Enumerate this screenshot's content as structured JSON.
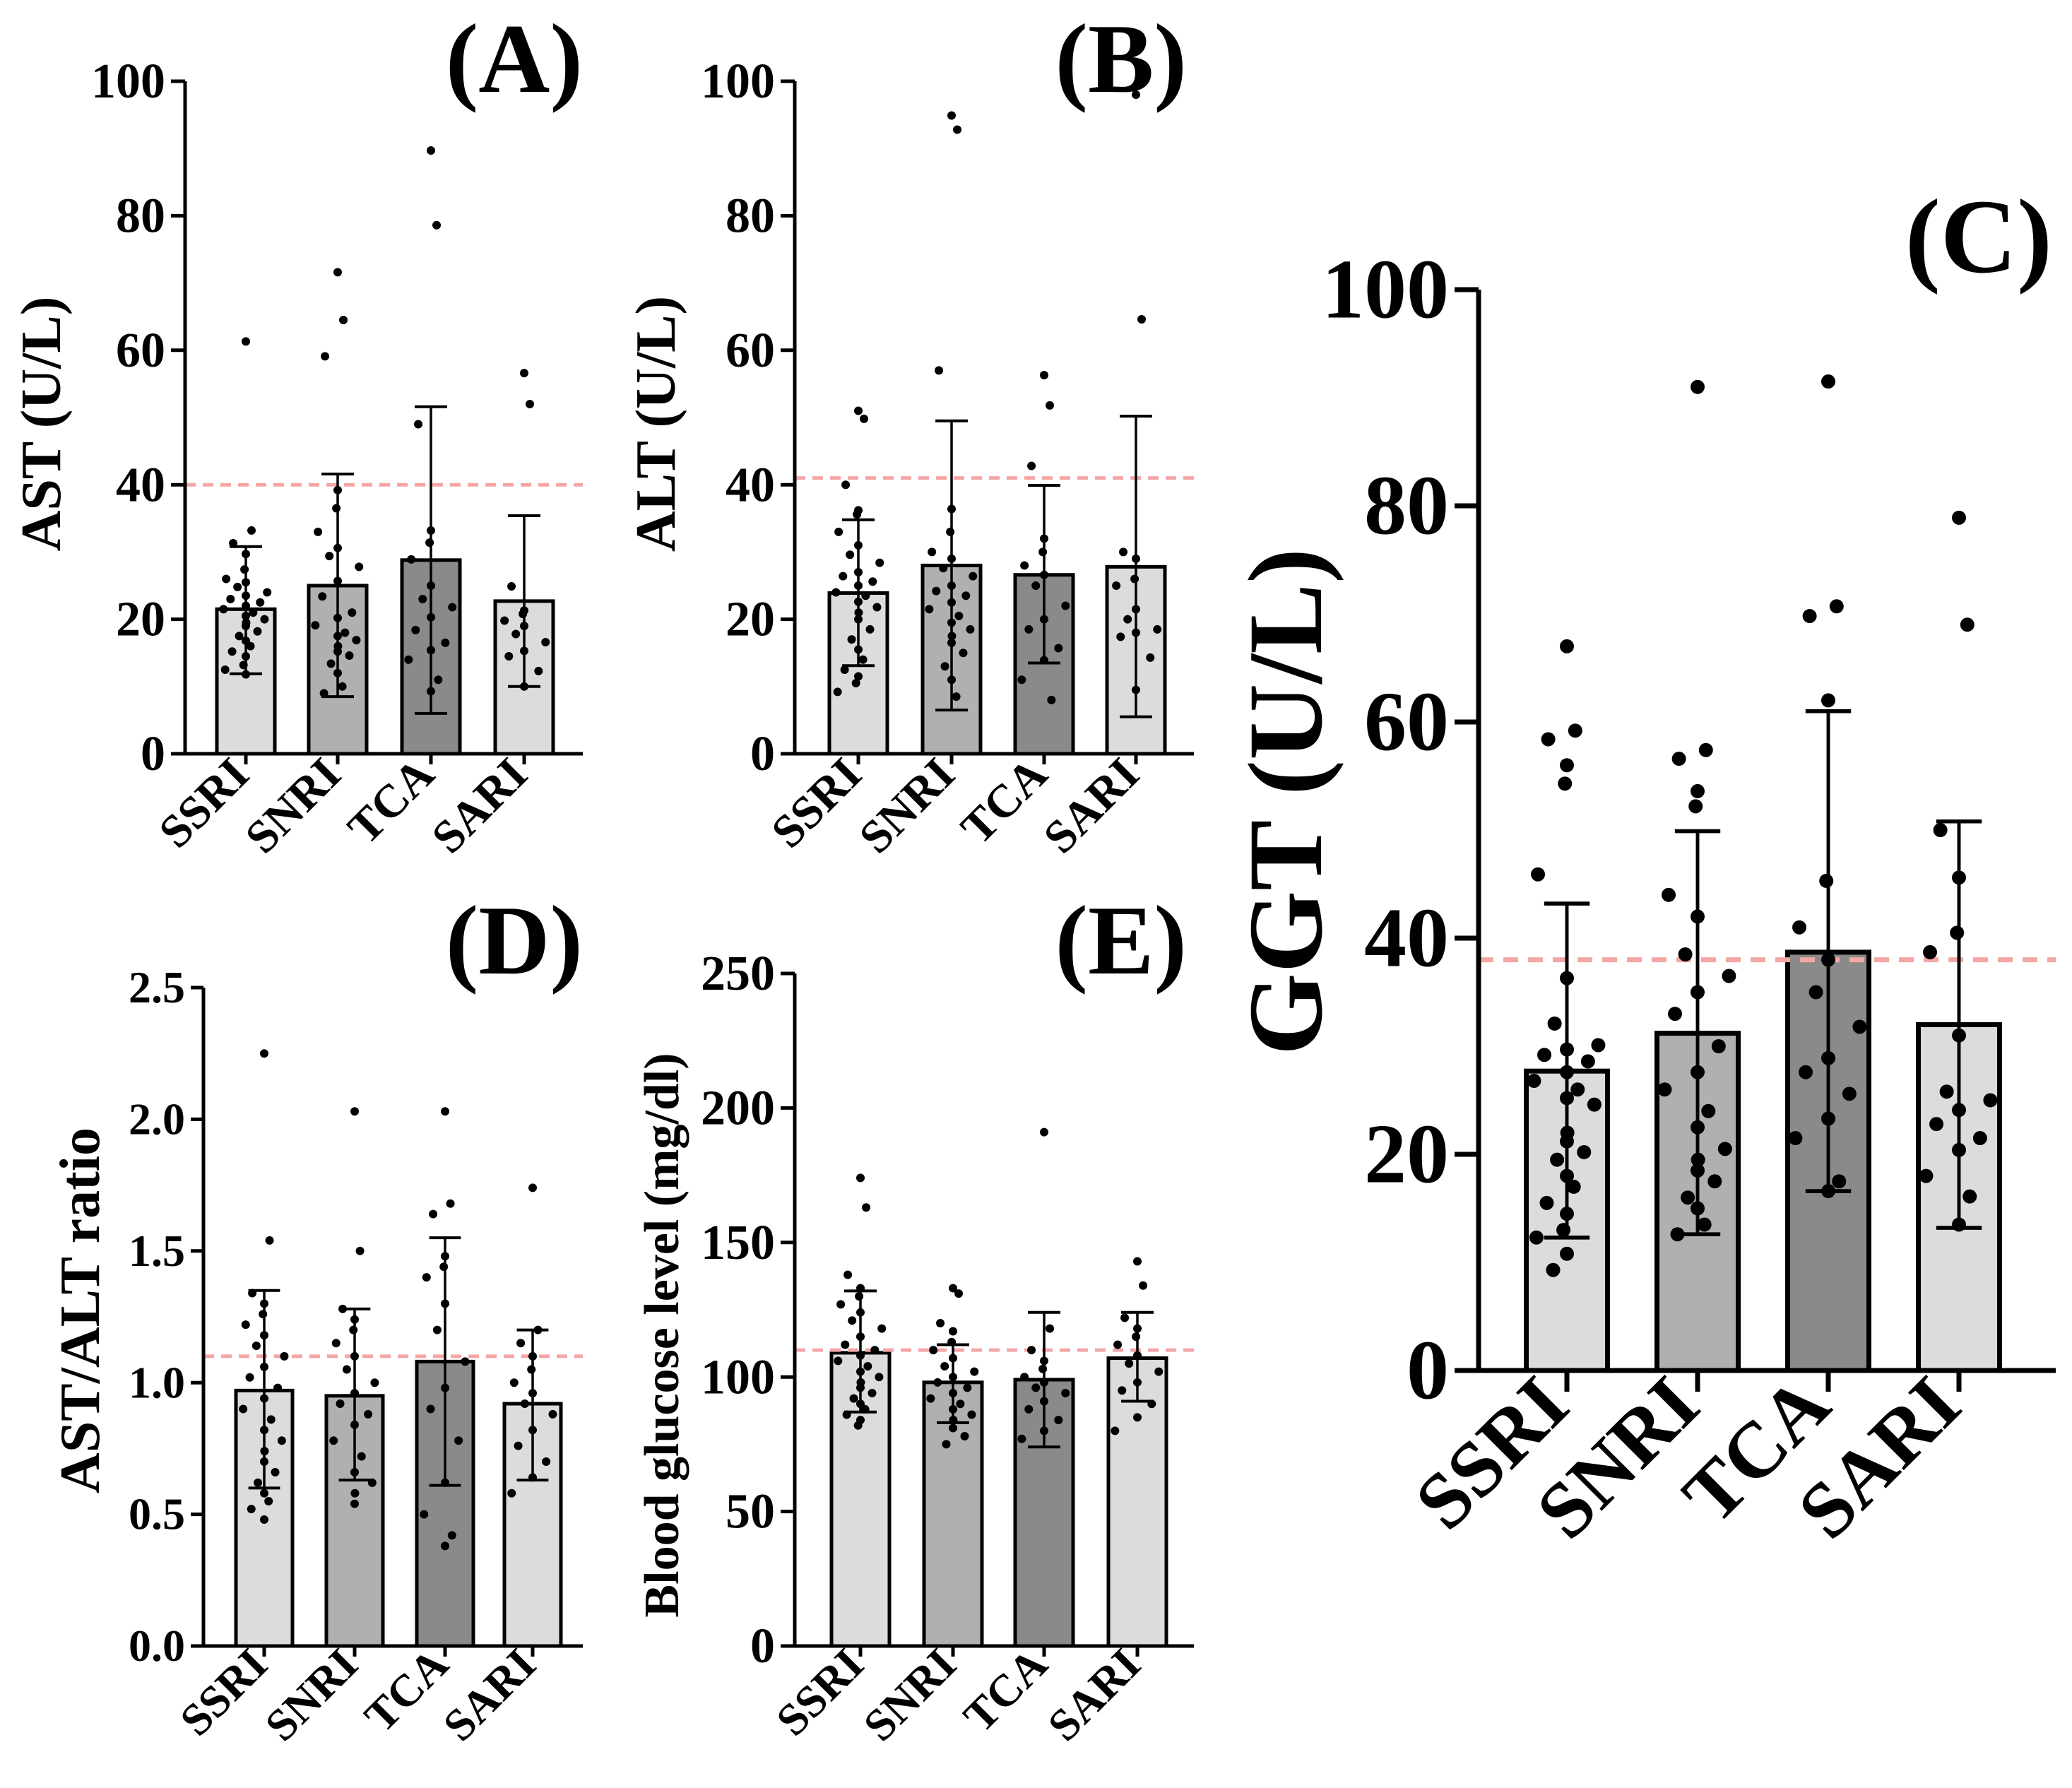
{
  "colors": {
    "reference_line": "#f4a6a6",
    "axis": "#000000",
    "points": "#000000"
  },
  "chart_data": [
    {
      "panel": "A",
      "panel_label": "(A)",
      "type": "bar",
      "ylabel": "AST (U/L)",
      "ylim": [
        0,
        100
      ],
      "yticks": [
        0,
        20,
        40,
        60,
        80,
        100
      ],
      "ytick_labels": [
        "0",
        "20",
        "40",
        "60",
        "80",
        "100"
      ],
      "reference_line": 40,
      "categories": [
        "SSRI",
        "SNRI",
        "TCA",
        "SARI"
      ],
      "bar_colors": [
        "#dcdcdc",
        "#b0b0b0",
        "#8a8a8a",
        "#dcdcdc"
      ],
      "values": [
        21.5,
        25,
        28.8,
        22.7
      ],
      "error_low": [
        11.9,
        8.5,
        6.0,
        10.0
      ],
      "error_high": [
        30.8,
        41.6,
        51.6,
        35.4
      ],
      "points": [
        [
          61.3,
          33.2,
          31.3,
          29.7,
          27.4,
          26.0,
          25.5,
          24.8,
          24.0,
          23.5,
          23.0,
          22.5,
          22.0,
          21.5,
          21.0,
          20.5,
          20.0,
          19.5,
          19.0,
          18.2,
          17.5,
          16.8,
          16.0,
          15.2,
          14.5,
          13.2,
          12.5,
          11.8
        ],
        [
          71.6,
          64.5,
          59.1,
          39.2,
          36.5,
          33.0,
          30.6,
          29.4,
          27.8,
          25.7,
          23.4,
          21.0,
          20.2,
          19.1,
          18.0,
          17.5,
          16.9,
          16.0,
          15.2,
          14.6,
          13.4,
          12.0,
          10.0,
          9.0
        ],
        [
          89.7,
          78.6,
          49.0,
          33.2,
          31.4,
          28.9,
          25.0,
          23.0,
          21.8,
          20.3,
          18.4,
          16.5,
          15.4,
          14.0,
          11.0,
          9.3
        ],
        [
          56.6,
          52.0,
          24.9,
          21.3,
          20.8,
          19.8,
          19.0,
          17.8,
          16.6,
          15.3,
          14.5,
          12.3,
          10.0
        ]
      ]
    },
    {
      "panel": "B",
      "panel_label": "(B)",
      "type": "bar",
      "ylabel": "ALT (U/L)",
      "ylim": [
        0,
        100
      ],
      "yticks": [
        0,
        20,
        40,
        60,
        80,
        100
      ],
      "ytick_labels": [
        "0",
        "20",
        "40",
        "60",
        "80",
        "100"
      ],
      "reference_line": 41,
      "categories": [
        "SSRI",
        "SNRI",
        "TCA",
        "SARI"
      ],
      "bar_colors": [
        "#dcdcdc",
        "#b0b0b0",
        "#8a8a8a",
        "#dcdcdc"
      ],
      "values": [
        23.9,
        28.0,
        26.6,
        27.8
      ],
      "error_low": [
        13.1,
        6.5,
        13.5,
        5.5
      ],
      "error_high": [
        34.8,
        49.5,
        39.9,
        50.2
      ],
      "points": [
        [
          51.0,
          49.8,
          40.0,
          36.2,
          35.6,
          33.0,
          31.0,
          29.6,
          28.4,
          27.0,
          26.4,
          25.6,
          25.0,
          24.0,
          23.5,
          22.6,
          21.8,
          21.0,
          20.0,
          18.5,
          17.0,
          15.5,
          14.0,
          12.5,
          11.5,
          10.5,
          9.2
        ],
        [
          94.9,
          92.8,
          57.0,
          36.4,
          33.0,
          30.0,
          29.0,
          27.6,
          26.4,
          25.0,
          24.2,
          23.5,
          22.5,
          21.5,
          20.5,
          19.5,
          18.5,
          17.5,
          16.5,
          15.0,
          13.0,
          11.0,
          8.5
        ],
        [
          56.3,
          51.8,
          42.8,
          32.0,
          30.0,
          28.0,
          26.6,
          25.0,
          22.0,
          20.0,
          18.5,
          15.7,
          13.9,
          11.0,
          8.0
        ],
        [
          98.0,
          64.6,
          30.0,
          29.0,
          26.0,
          25.0,
          21.5,
          20.0,
          18.5,
          18.0,
          17.4,
          14.3,
          9.5
        ]
      ]
    },
    {
      "panel": "C",
      "panel_label": "(C)",
      "type": "bar",
      "ylabel": "GGT (U/L)",
      "ylim": [
        0,
        100
      ],
      "yticks": [
        0,
        20,
        40,
        60,
        80,
        100
      ],
      "ytick_labels": [
        "0",
        "20",
        "40",
        "60",
        "80",
        "100"
      ],
      "reference_line": 38,
      "categories": [
        "SSRI",
        "SNRI",
        "TCA",
        "SARI"
      ],
      "bar_colors": [
        "#dcdcdc",
        "#b0b0b0",
        "#8a8a8a",
        "#dcdcdc"
      ],
      "values": [
        27.7,
        31.2,
        38.7,
        32.0
      ],
      "error_low": [
        12.3,
        12.6,
        16.6,
        13.2
      ],
      "error_high": [
        43.2,
        49.9,
        61.0,
        50.8
      ],
      "points": [
        [
          67.0,
          59.2,
          58.4,
          56.0,
          54.3,
          45.9,
          36.3,
          32.1,
          30.1,
          29.7,
          29.2,
          28.6,
          27.6,
          26.8,
          26.0,
          25.2,
          24.6,
          22.0,
          21.2,
          20.2,
          19.5,
          18.0,
          17.0,
          15.5,
          14.5,
          13.0,
          12.3,
          10.8,
          9.3
        ],
        [
          91.0,
          57.4,
          56.6,
          53.6,
          52.2,
          44.0,
          42.0,
          38.5,
          36.5,
          35.0,
          33.0,
          30.0,
          27.6,
          26.0,
          24.0,
          22.5,
          20.5,
          19.5,
          18.5,
          17.5,
          16.0,
          15.0,
          13.5,
          12.6
        ],
        [
          91.5,
          70.7,
          69.8,
          62.0,
          45.3,
          41.0,
          38.0,
          35.0,
          31.8,
          28.9,
          27.6,
          25.6,
          23.3,
          21.5,
          17.5,
          16.6
        ],
        [
          78.9,
          69.0,
          50.0,
          45.6,
          40.5,
          38.7,
          31.0,
          25.8,
          25.0,
          24.1,
          22.8,
          21.5,
          20.4,
          18.0,
          16.1,
          13.5
        ]
      ]
    },
    {
      "panel": "D",
      "panel_label": "(D)",
      "type": "bar",
      "ylabel": "AST/ALT ratio",
      "ylim": [
        0,
        2.5
      ],
      "yticks": [
        0,
        0.5,
        1.0,
        1.5,
        2.0,
        2.5
      ],
      "ytick_labels": [
        "0.0",
        "0.5",
        "1.0",
        "1.5",
        "2.0",
        "2.5"
      ],
      "reference_line": 1.1,
      "categories": [
        "SSRI",
        "SNRI",
        "TCA",
        "SARI"
      ],
      "bar_colors": [
        "#dcdcdc",
        "#b0b0b0",
        "#8a8a8a",
        "#dcdcdc"
      ],
      "values": [
        0.97,
        0.95,
        1.08,
        0.92
      ],
      "error_low": [
        0.6,
        0.63,
        0.61,
        0.63
      ],
      "error_high": [
        1.35,
        1.28,
        1.55,
        1.2
      ],
      "points": [
        [
          2.25,
          1.54,
          1.34,
          1.3,
          1.26,
          1.22,
          1.18,
          1.14,
          1.1,
          1.06,
          1.02,
          0.98,
          0.94,
          0.9,
          0.86,
          0.82,
          0.78,
          0.74,
          0.7,
          0.66,
          0.62,
          0.58,
          0.55,
          0.52,
          0.48
        ],
        [
          2.03,
          1.5,
          1.28,
          1.24,
          1.2,
          1.15,
          1.1,
          1.05,
          1.0,
          0.96,
          0.92,
          0.88,
          0.84,
          0.78,
          0.72,
          0.66,
          0.62,
          0.58,
          0.54
        ],
        [
          2.03,
          1.68,
          1.64,
          1.48,
          1.44,
          1.4,
          1.3,
          1.2,
          1.08,
          0.98,
          0.9,
          0.78,
          0.62,
          0.5,
          0.42,
          0.38
        ],
        [
          1.74,
          1.2,
          1.15,
          1.1,
          1.05,
          1.0,
          0.96,
          0.92,
          0.88,
          0.82,
          0.76,
          0.7,
          0.64,
          0.58
        ]
      ]
    },
    {
      "panel": "E",
      "panel_label": "(E)",
      "type": "bar",
      "ylabel": "Blood glucose level (mg/dl)",
      "ylim": [
        0,
        250
      ],
      "yticks": [
        0,
        50,
        100,
        150,
        200,
        250
      ],
      "ytick_labels": [
        "0",
        "50",
        "100",
        "150",
        "200",
        "250"
      ],
      "reference_line": 110,
      "categories": [
        "SSRI",
        "SNRI",
        "TCA",
        "SARI"
      ],
      "bar_colors": [
        "#dcdcdc",
        "#b0b0b0",
        "#8a8a8a",
        "#dcdcdc"
      ],
      "values": [
        109,
        98,
        99,
        107
      ],
      "error_low": [
        87,
        83,
        74,
        91
      ],
      "error_high": [
        132,
        112,
        124,
        124
      ],
      "points": [
        [
          174,
          163,
          138,
          133,
          130,
          127,
          124,
          121,
          118,
          115,
          112,
          110,
          108,
          106,
          104,
          102,
          100,
          98,
          96,
          94,
          92,
          90,
          88,
          86,
          84,
          82
        ],
        [
          133,
          131,
          120,
          117,
          113,
          110,
          107,
          104,
          102,
          100,
          98,
          96,
          94,
          92,
          90,
          88,
          86,
          84,
          81,
          78,
          75
        ],
        [
          191,
          118,
          110,
          106,
          103,
          100,
          98,
          96,
          94,
          91,
          88,
          84,
          80,
          77
        ],
        [
          143,
          134,
          122,
          118,
          115,
          112,
          108,
          105,
          102,
          98,
          95,
          90,
          85,
          80
        ]
      ]
    }
  ]
}
